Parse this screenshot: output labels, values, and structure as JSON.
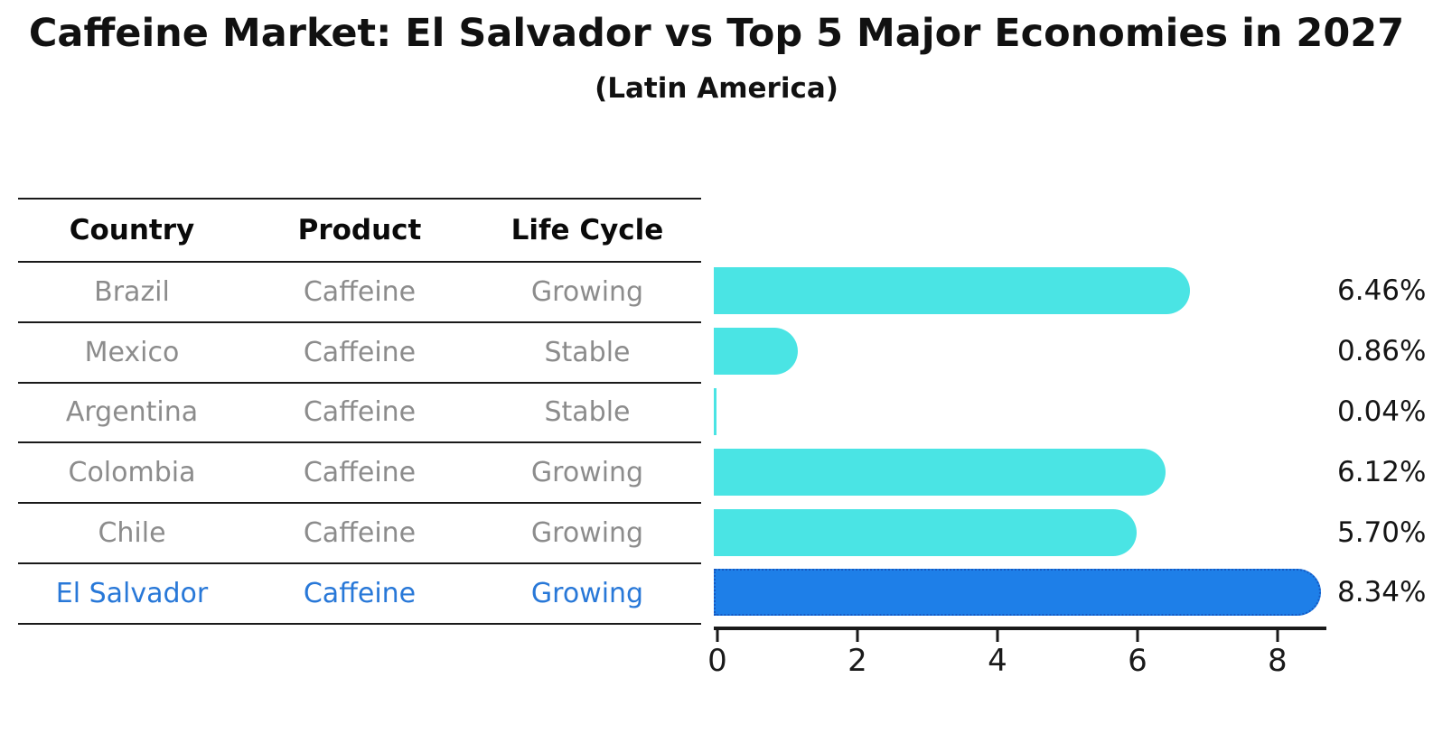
{
  "title": "Caffeine Market: El Salvador vs Top 5 Major Economies in 2027",
  "subtitle": "(Latin America)",
  "table": {
    "headers": {
      "country": "Country",
      "product": "Product",
      "life_cycle": "Life Cycle"
    },
    "rows": [
      {
        "country": "Brazil",
        "product": "Caffeine",
        "life_cycle": "Growing",
        "highlight": false
      },
      {
        "country": "Mexico",
        "product": "Caffeine",
        "life_cycle": "Stable",
        "highlight": false
      },
      {
        "country": "Argentina",
        "product": "Caffeine",
        "life_cycle": "Stable",
        "highlight": false
      },
      {
        "country": "Colombia",
        "product": "Caffeine",
        "life_cycle": "Growing",
        "highlight": false
      },
      {
        "country": "Chile",
        "product": "Caffeine",
        "life_cycle": "Growing",
        "highlight": false
      },
      {
        "country": "El Salvador",
        "product": "Caffeine",
        "life_cycle": "Growing",
        "highlight": true
      }
    ]
  },
  "chart_data": {
    "type": "bar",
    "orientation": "horizontal",
    "title": "Caffeine Market: El Salvador vs Top 5 Major Economies in 2027 (Latin America)",
    "categories": [
      "Brazil",
      "Mexico",
      "Argentina",
      "Colombia",
      "Chile",
      "El Salvador"
    ],
    "values": [
      6.46,
      0.86,
      0.04,
      6.12,
      5.7,
      8.34
    ],
    "value_labels": [
      "6.46%",
      "0.86%",
      "0.04%",
      "6.12%",
      "5.70%",
      "8.34%"
    ],
    "units": "percent",
    "xlabel": "",
    "ylabel": "",
    "xticks": [
      0,
      2,
      4,
      6,
      8
    ],
    "xlim": [
      0,
      8.75
    ],
    "grid": false,
    "legend": "none",
    "highlight_index": 5,
    "bar_color": "#4ae4e4",
    "highlight_bar_color": "#1e7fe8",
    "highlight_text_color": "#2878d8"
  }
}
